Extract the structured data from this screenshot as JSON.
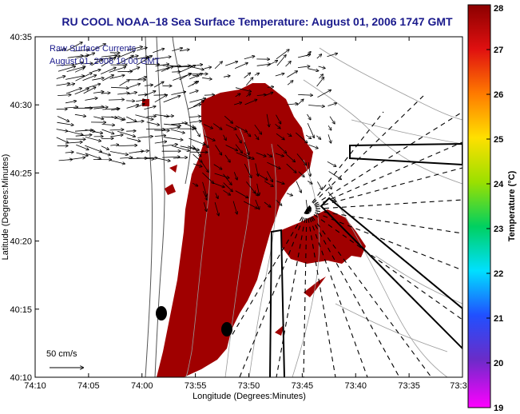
{
  "chart_data": {
    "type": "heatmap",
    "title": "RU COOL  NOAA–18  Sea Surface Temperature:  August 01, 2006 1747 GMT",
    "xlabel": "Longitude (Degrees:Minutes)",
    "ylabel": "Latitude (Degrees:Minutes)",
    "x_ticks": [
      "74:10",
      "74:05",
      "74:00",
      "73:55",
      "73:50",
      "73:45",
      "73:40",
      "73:35",
      "73:3"
    ],
    "y_ticks": [
      "40:35",
      "40:30",
      "40:25",
      "40:20",
      "40:15",
      "40:10"
    ],
    "xlim": [
      -74.1667,
      -73.5
    ],
    "ylim": [
      40.1667,
      40.5833
    ],
    "legend": {
      "line1": "Raw Surface Currents",
      "line2": "August 01, 2006 19:00 GMT",
      "placement": "top-left"
    },
    "vector_scale_label": "50 cm/s",
    "colorbar": {
      "label": "Temperature (°C)",
      "min": 19,
      "max": 28,
      "ticks": [
        28,
        27,
        26,
        25,
        24,
        23,
        22,
        21,
        20,
        19
      ]
    },
    "sst_field_color": "#a00000"
  }
}
